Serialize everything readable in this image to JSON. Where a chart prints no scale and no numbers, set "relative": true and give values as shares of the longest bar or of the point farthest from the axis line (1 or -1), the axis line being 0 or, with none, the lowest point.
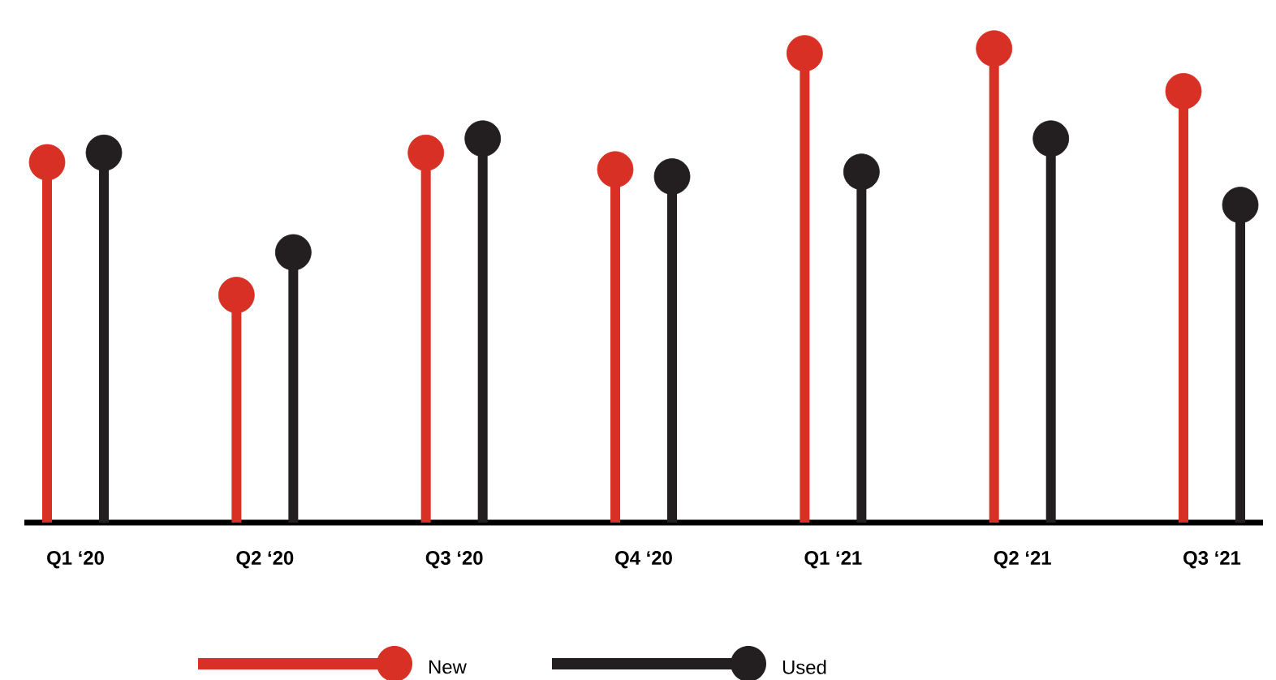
{
  "chart_data": {
    "type": "lollipop",
    "relative": true,
    "marker": "circle",
    "legend": "bottom",
    "categories": [
      "Q1 ‘20",
      "Q2 ‘20",
      "Q3 ‘20",
      "Q4 ‘20",
      "Q1 ‘21",
      "Q2 ‘21",
      "Q3 ‘21"
    ],
    "series": [
      {
        "name": "New",
        "color": "#d93025",
        "values": [
          0.76,
          0.48,
          0.78,
          0.745,
          0.99,
          1,
          0.91
        ]
      },
      {
        "name": "Used",
        "color": "#231f20",
        "values": [
          0.78,
          0.57,
          0.81,
          0.73,
          0.74,
          0.81,
          0.67
        ]
      }
    ]
  }
}
